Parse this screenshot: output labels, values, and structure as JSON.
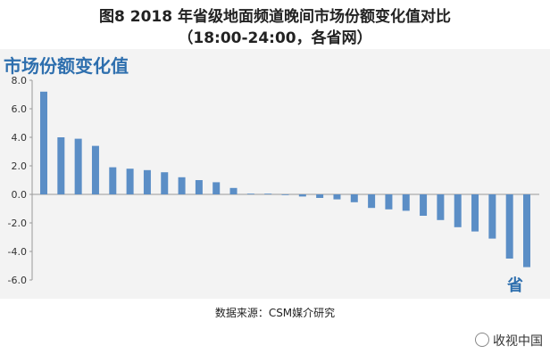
{
  "header": {
    "title_line1": "图8 2018 年省级地面频道晚间市场份额变化值对比",
    "title_line2": "（18:00-24:00，各省网）"
  },
  "panel": {
    "title": "市场份额变化值"
  },
  "source": "数据来源：CSM媒介研究",
  "watermark": "收视中国",
  "chart_data": {
    "type": "bar",
    "title": "市场份额变化值",
    "xlabel": "省",
    "ylabel": "",
    "ylim": [
      -6.0,
      8.0
    ],
    "yticks": [
      "8.0",
      "6.0",
      "4.0",
      "2.0",
      "0.0",
      "-2.0",
      "-4.0",
      "-6.0"
    ],
    "values": [
      7.2,
      4.0,
      3.9,
      3.4,
      1.9,
      1.8,
      1.7,
      1.55,
      1.2,
      1.0,
      0.85,
      0.45,
      0.05,
      0.05,
      -0.05,
      -0.15,
      -0.25,
      -0.35,
      -0.55,
      -0.95,
      -1.05,
      -1.15,
      -1.5,
      -1.8,
      -2.3,
      -2.6,
      -3.1,
      -4.5,
      -5.1
    ],
    "bar_color": "#5b8ec6",
    "grid": false
  }
}
